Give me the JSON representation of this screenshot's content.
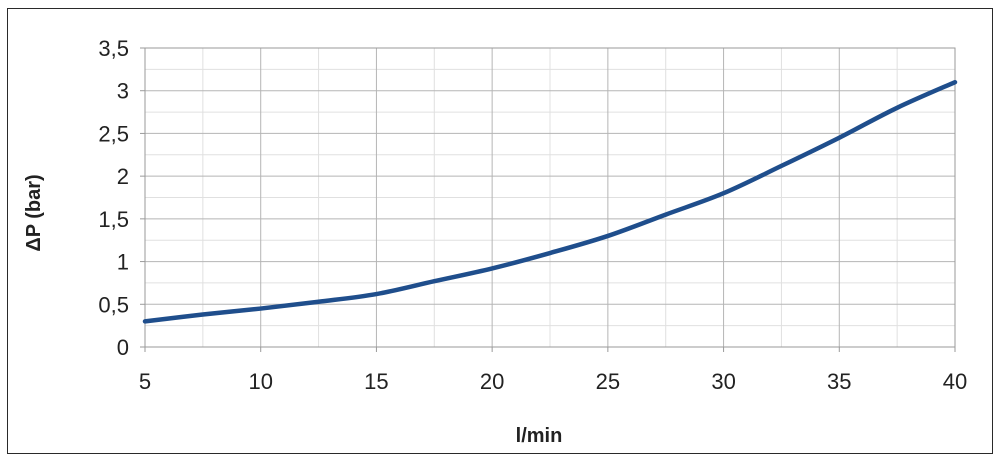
{
  "chart_data": {
    "type": "line",
    "title": "",
    "xlabel": "l/min",
    "ylabel": "ΔP (bar)",
    "xlim": [
      5,
      40
    ],
    "ylim": [
      0,
      3.5
    ],
    "x_ticks": [
      5,
      10,
      15,
      20,
      25,
      30,
      35,
      40
    ],
    "x_tick_labels": [
      "5",
      "10",
      "15",
      "20",
      "25",
      "30",
      "35",
      "40"
    ],
    "y_ticks": [
      0,
      0.5,
      1,
      1.5,
      2,
      2.5,
      3,
      3.5
    ],
    "y_tick_labels": [
      "0",
      "0,5",
      "1",
      "1,5",
      "2",
      "2,5",
      "3",
      "3,5"
    ],
    "grid": true,
    "legend": "none",
    "series": [
      {
        "color": "#1f4e8c",
        "x": [
          5,
          7.5,
          10,
          12.5,
          15,
          17.5,
          20,
          22.5,
          25,
          27.5,
          30,
          32.5,
          35,
          37.5,
          40
        ],
        "y": [
          0.3,
          0.38,
          0.45,
          0.53,
          0.62,
          0.77,
          0.92,
          1.1,
          1.3,
          1.55,
          1.8,
          2.12,
          2.45,
          2.8,
          3.1
        ]
      }
    ]
  }
}
